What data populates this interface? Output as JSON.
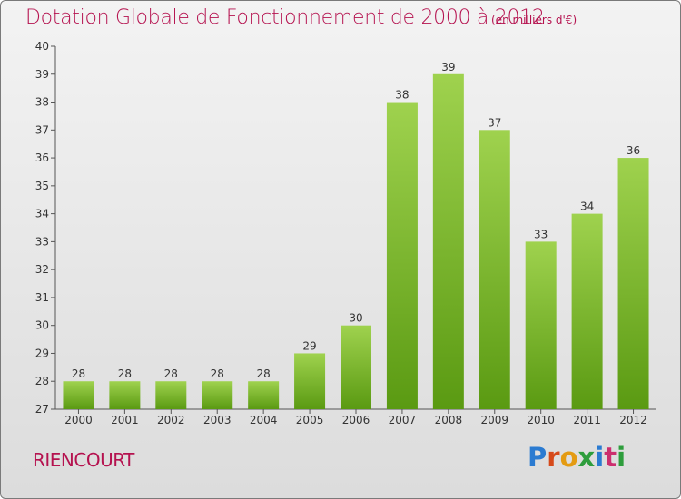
{
  "header": {
    "title": "Dotation Globale de Fonctionnement de 2000 à 2012",
    "unit": "(en milliers d'€)"
  },
  "footer": {
    "commune": "RIENCOURT",
    "logo": "Proxiti"
  },
  "colors": {
    "title": "#b5124f",
    "bar_top": "#9fd24e",
    "bar_bottom": "#5a9a12"
  },
  "chart_data": {
    "type": "bar",
    "title": "Dotation Globale de Fonctionnement de 2000 à 2012",
    "subtitle": "(en milliers d'€)",
    "xlabel": "",
    "ylabel": "",
    "categories": [
      "2000",
      "2001",
      "2002",
      "2003",
      "2004",
      "2005",
      "2006",
      "2007",
      "2008",
      "2009",
      "2010",
      "2011",
      "2012"
    ],
    "values": [
      28,
      28,
      28,
      28,
      28,
      29,
      30,
      38,
      39,
      37,
      33,
      34,
      36
    ],
    "ylim": [
      27,
      40
    ],
    "yticks": [
      27,
      28,
      29,
      30,
      31,
      32,
      33,
      34,
      35,
      36,
      37,
      38,
      39,
      40
    ],
    "grid": false,
    "legend": "none"
  }
}
